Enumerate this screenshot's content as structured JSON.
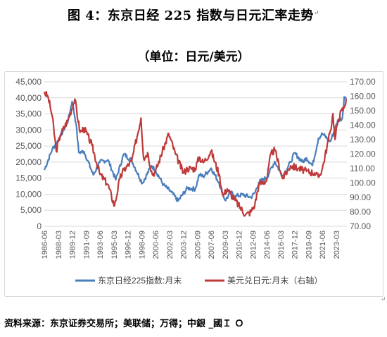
{
  "title": "图 4：东京日经 225 指数与日元汇率走势",
  "title_mark": "↵",
  "subtitle": "（单位：日元/美元）",
  "source": "资料来源：东京证券交易所；美联储；万得；中銀 _國Ｉ Ｏ",
  "corner_mark": "↵",
  "colors": {
    "nikkei": "#4a7ebb",
    "usdjpy": "#be3a3a",
    "grid": "#d9d9d9",
    "axis_text": "#595959"
  },
  "chart_data": {
    "type": "line",
    "x_tick_labels": [
      "1986-06",
      "1988-03",
      "1989-12",
      "1991-09",
      "1993-06",
      "1995-03",
      "1996-12",
      "1998-09",
      "2000-06",
      "2002-03",
      "2003-12",
      "2005-09",
      "2007-06",
      "2009-03",
      "2010-12",
      "2012-09",
      "2014-06",
      "2016-03",
      "2017-12",
      "2019-09",
      "2021-06",
      "2023-03"
    ],
    "y_left": {
      "min": 0,
      "max": 45000,
      "step": 5000,
      "tick_labels": [
        "0",
        "5,000",
        "10,000",
        "15,000",
        "20,000",
        "25,000",
        "30,000",
        "35,000",
        "40,000",
        "45,000"
      ]
    },
    "y_right": {
      "min": 70,
      "max": 170,
      "step": 10,
      "tick_labels": [
        "70.00",
        "80.00",
        "90.00",
        "100.00",
        "110.00",
        "120.00",
        "130.00",
        "140.00",
        "150.00",
        "160.00",
        "170.00"
      ]
    },
    "series": [
      {
        "name": "东京日经225指数:月末",
        "axis": "left",
        "x": [
          "1986-06",
          "1987-06",
          "1988-06",
          "1989-06",
          "1989-12",
          "1990-06",
          "1990-10",
          "1991-06",
          "1992-08",
          "1993-06",
          "1994-06",
          "1995-06",
          "1996-06",
          "1997-06",
          "1998-10",
          "1999-12",
          "2000-06",
          "2001-06",
          "2002-06",
          "2003-04",
          "2004-06",
          "2005-06",
          "2005-12",
          "2006-06",
          "2007-06",
          "2008-06",
          "2009-03",
          "2009-12",
          "2010-06",
          "2011-06",
          "2012-06",
          "2012-12",
          "2013-06",
          "2014-06",
          "2015-06",
          "2016-06",
          "2017-06",
          "2017-12",
          "2018-12",
          "2019-06",
          "2020-03",
          "2020-12",
          "2021-06",
          "2022-06",
          "2023-06",
          "2023-12",
          "2024-03",
          "2024-06"
        ],
        "values": [
          17500,
          24000,
          27800,
          33000,
          38900,
          31900,
          23000,
          23300,
          16000,
          20000,
          20700,
          14500,
          22500,
          20500,
          13400,
          18900,
          17400,
          12900,
          10600,
          7900,
          11900,
          11600,
          16100,
          15500,
          18100,
          13500,
          8100,
          10500,
          9400,
          9800,
          9000,
          10400,
          13700,
          15200,
          20200,
          15600,
          20000,
          22800,
          20000,
          21300,
          18900,
          27400,
          28800,
          26400,
          33200,
          33500,
          40300,
          39600
        ]
      },
      {
        "name": "美元兑日元:月末（右轴）",
        "axis": "right",
        "x": [
          "1986-06",
          "1986-12",
          "1987-06",
          "1987-12",
          "1988-06",
          "1989-06",
          "1990-04",
          "1990-12",
          "1991-06",
          "1992-06",
          "1993-06",
          "1994-06",
          "1995-04",
          "1995-12",
          "1996-06",
          "1997-06",
          "1998-08",
          "1998-12",
          "1999-06",
          "2000-01",
          "2000-06",
          "2001-06",
          "2002-02",
          "2002-12",
          "2003-12",
          "2004-06",
          "2005-06",
          "2005-12",
          "2006-06",
          "2007-06",
          "2008-06",
          "2008-12",
          "2009-06",
          "2010-06",
          "2011-10",
          "2012-06",
          "2012-12",
          "2013-06",
          "2014-06",
          "2014-12",
          "2015-06",
          "2016-06",
          "2017-06",
          "2018-06",
          "2019-06",
          "2020-06",
          "2020-12",
          "2021-06",
          "2022-06",
          "2022-10",
          "2023-01",
          "2023-06",
          "2023-11",
          "2024-03",
          "2024-06"
        ],
        "values": [
          163,
          159,
          146,
          122,
          133,
          144,
          158,
          135,
          138,
          126,
          106,
          99,
          84,
          103,
          109,
          115,
          145,
          117,
          121,
          106,
          108,
          124,
          134,
          120,
          107,
          110,
          110,
          118,
          114,
          122,
          106,
          91,
          96,
          88,
          78,
          80,
          85,
          99,
          102,
          120,
          123,
          103,
          112,
          110,
          108,
          107,
          104,
          110,
          136,
          148,
          130,
          144,
          150,
          152,
          158
        ]
      }
    ]
  }
}
